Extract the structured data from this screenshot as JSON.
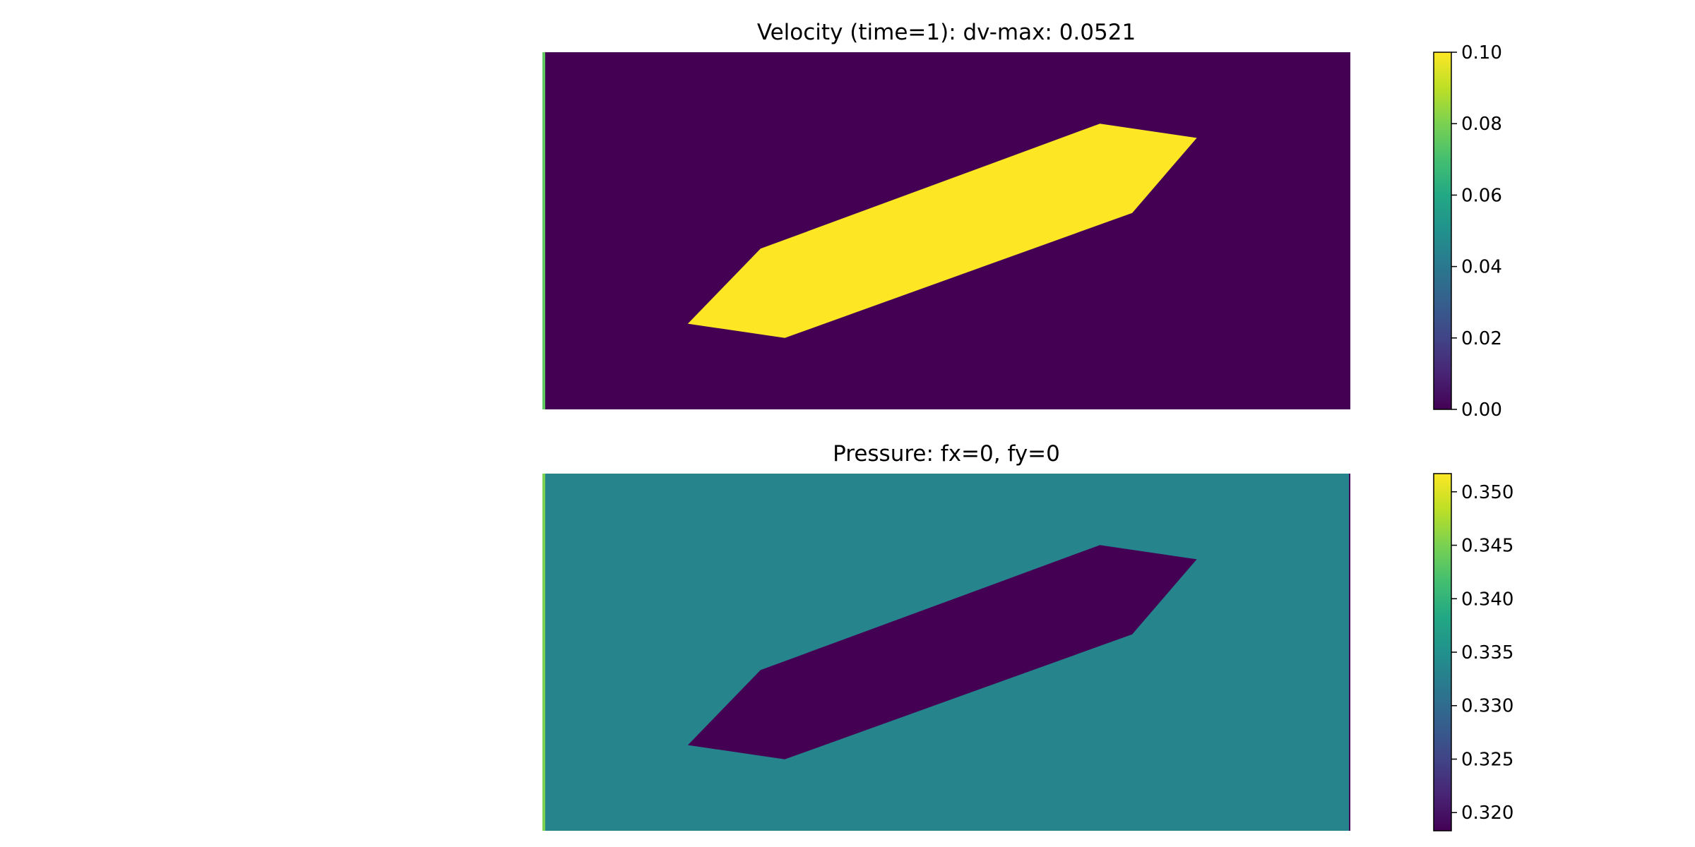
{
  "chart_data": [
    {
      "type": "heatmap",
      "title": "Velocity (time=1): dv-max: 0.0521",
      "field": "velocity magnitude",
      "axes_visible": false,
      "colormap": "viridis",
      "colorbar": {
        "vmin": 0.0,
        "vmax": 0.1,
        "ticks": [
          "0.00",
          "0.02",
          "0.04",
          "0.06",
          "0.08",
          "0.10"
        ],
        "tick_values": [
          0.0,
          0.02,
          0.04,
          0.06,
          0.08,
          0.1
        ]
      },
      "background_value": 0.0,
      "left_edge_value": 0.075,
      "region": {
        "description": "slanted parallelogram obstacle",
        "value": 0.1,
        "vertices_fraction": [
          [
            0.18,
            0.76
          ],
          [
            0.27,
            0.55
          ],
          [
            0.69,
            0.2
          ],
          [
            0.81,
            0.24
          ],
          [
            0.73,
            0.45
          ],
          [
            0.3,
            0.8
          ]
        ]
      }
    },
    {
      "type": "heatmap",
      "title": "Pressure: fx=0, fy=0",
      "field": "pressure",
      "axes_visible": false,
      "colormap": "viridis",
      "colorbar": {
        "vmin": 0.3183,
        "vmax": 0.3517,
        "ticks": [
          "0.320",
          "0.325",
          "0.330",
          "0.335",
          "0.340",
          "0.345",
          "0.350"
        ],
        "tick_values": [
          0.32,
          0.325,
          0.33,
          0.335,
          0.34,
          0.345,
          0.35
        ]
      },
      "background_value": 0.3333,
      "left_edge_value": 0.345,
      "right_edge_value": 0.3183,
      "region": {
        "description": "slanted parallelogram obstacle",
        "value": 0.3183,
        "vertices_fraction": [
          [
            0.18,
            0.76
          ],
          [
            0.27,
            0.55
          ],
          [
            0.69,
            0.2
          ],
          [
            0.81,
            0.24
          ],
          [
            0.73,
            0.45
          ],
          [
            0.3,
            0.8
          ]
        ]
      }
    }
  ]
}
